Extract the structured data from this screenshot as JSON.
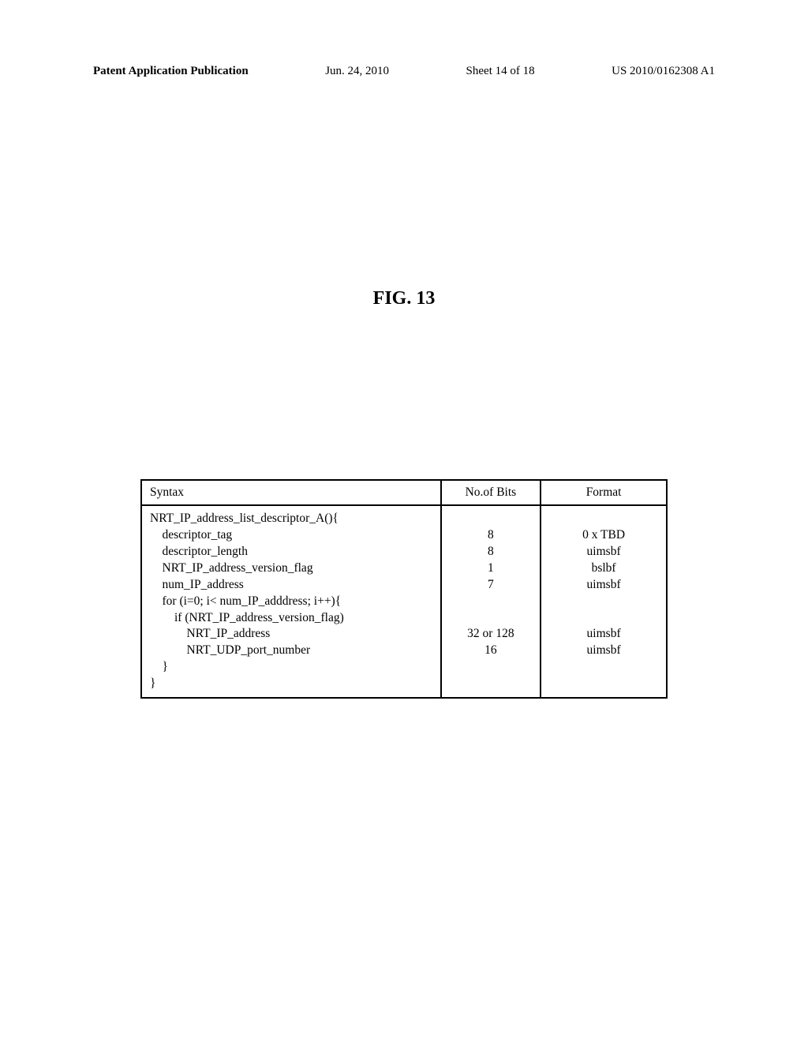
{
  "header": {
    "left": "Patent Application Publication",
    "center_date": "Jun. 24, 2010",
    "center_sheet": "Sheet 14 of 18",
    "right": "US 2010/0162308 A1"
  },
  "figure_label": "FIG. 13",
  "table": {
    "headers": {
      "syntax": "Syntax",
      "bits": "No.of Bits",
      "format": "Format"
    },
    "syntax_lines": "NRT_IP_address_list_descriptor_A(){\n    descriptor_tag\n    descriptor_length\n    NRT_IP_address_version_flag\n    num_IP_address\n    for (i=0; i< num_IP_adddress; i++){\n        if (NRT_IP_address_version_flag)\n            NRT_IP_address\n            NRT_UDP_port_number\n    }\n}",
    "bits_lines": "\n8\n8\n1\n7\n\n\n32 or 128\n16",
    "format_lines": "\n0 x TBD\nuimsbf\nbslbf\nuimsbf\n\n\nuimsbf\nuimsbf"
  }
}
